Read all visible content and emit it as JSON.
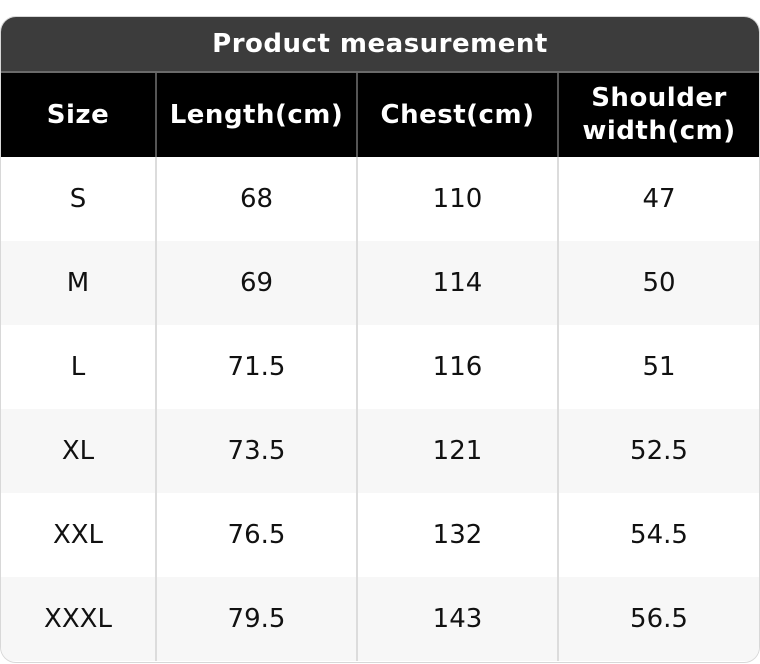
{
  "title": "Product measurement",
  "headers": [
    "Size",
    "Length(cm)",
    "Chest(cm)",
    "Shoulder width(cm)"
  ],
  "rows": [
    [
      "S",
      "68",
      "110",
      "47"
    ],
    [
      "M",
      "69",
      "114",
      "50"
    ],
    [
      "L",
      "71.5",
      "116",
      "51"
    ],
    [
      "XL",
      "73.5",
      "121",
      "52.5"
    ],
    [
      "XXL",
      "76.5",
      "132",
      "54.5"
    ],
    [
      "XXXL",
      "79.5",
      "143",
      "56.5"
    ]
  ]
}
